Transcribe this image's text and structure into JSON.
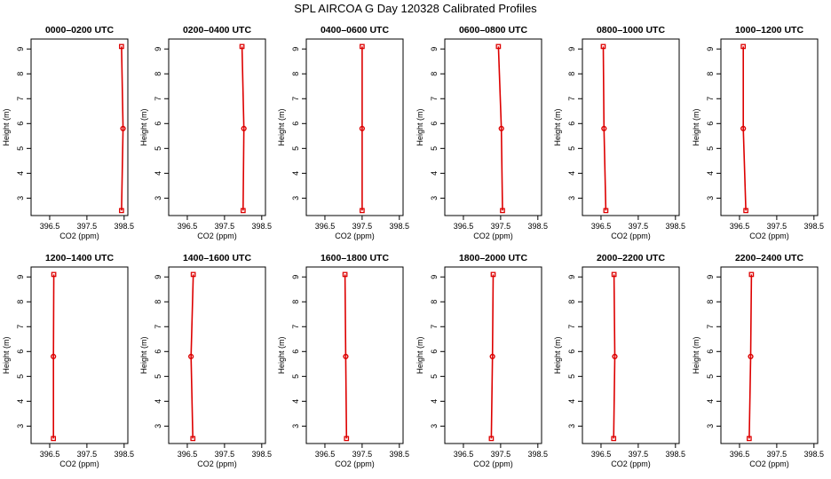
{
  "figure": {
    "title": "SPL AIRCOA G  Day 120328  Calibrated Profiles"
  },
  "colors": {
    "profile": "#dd0000",
    "axis": "#000000",
    "background": "#ffffff"
  },
  "chart_data": [
    {
      "type": "line",
      "title": "0000–0200 UTC",
      "xlabel": "CO2 (ppm)",
      "ylabel": "Height (m)",
      "xlim": [
        396.0,
        398.6
      ],
      "ylim": [
        2.3,
        9.4
      ],
      "xticks": [
        "396.5",
        "397.5",
        "398.5"
      ],
      "xtick_values": [
        396.5,
        397.5,
        398.5
      ],
      "yticks": [
        "3",
        "4",
        "5",
        "6",
        "7",
        "8",
        "9"
      ],
      "ytick_values": [
        3,
        4,
        5,
        6,
        7,
        8,
        9
      ],
      "heights": [
        2.5,
        5.8,
        9.1
      ],
      "co2": [
        398.43,
        398.47,
        398.43
      ]
    },
    {
      "type": "line",
      "title": "0200–0400 UTC",
      "xlabel": "CO2 (ppm)",
      "ylabel": "Height (m)",
      "xlim": [
        396.0,
        398.6
      ],
      "ylim": [
        2.3,
        9.4
      ],
      "xticks": [
        "396.5",
        "397.5",
        "398.5"
      ],
      "xtick_values": [
        396.5,
        397.5,
        398.5
      ],
      "yticks": [
        "3",
        "4",
        "5",
        "6",
        "7",
        "8",
        "9"
      ],
      "ytick_values": [
        3,
        4,
        5,
        6,
        7,
        8,
        9
      ],
      "heights": [
        2.5,
        5.8,
        9.1
      ],
      "co2": [
        398.0,
        398.02,
        397.97
      ]
    },
    {
      "type": "line",
      "title": "0400–0600 UTC",
      "xlabel": "CO2 (ppm)",
      "ylabel": "Height (m)",
      "xlim": [
        396.0,
        398.6
      ],
      "ylim": [
        2.3,
        9.4
      ],
      "xticks": [
        "396.5",
        "397.5",
        "398.5"
      ],
      "xtick_values": [
        396.5,
        397.5,
        398.5
      ],
      "yticks": [
        "3",
        "4",
        "5",
        "6",
        "7",
        "8",
        "9"
      ],
      "ytick_values": [
        3,
        4,
        5,
        6,
        7,
        8,
        9
      ],
      "heights": [
        2.5,
        5.8,
        9.1
      ],
      "co2": [
        397.5,
        397.5,
        397.5
      ]
    },
    {
      "type": "line",
      "title": "0600–0800 UTC",
      "xlabel": "CO2 (ppm)",
      "ylabel": "Height (m)",
      "xlim": [
        396.0,
        398.6
      ],
      "ylim": [
        2.3,
        9.4
      ],
      "xticks": [
        "396.5",
        "397.5",
        "398.5"
      ],
      "xtick_values": [
        396.5,
        397.5,
        398.5
      ],
      "yticks": [
        "3",
        "4",
        "5",
        "6",
        "7",
        "8",
        "9"
      ],
      "ytick_values": [
        3,
        4,
        5,
        6,
        7,
        8,
        9
      ],
      "heights": [
        2.5,
        5.8,
        9.1
      ],
      "co2": [
        397.55,
        397.52,
        397.44
      ]
    },
    {
      "type": "line",
      "title": "0800–1000 UTC",
      "xlabel": "CO2 (ppm)",
      "ylabel": "Height (m)",
      "xlim": [
        396.0,
        398.6
      ],
      "ylim": [
        2.3,
        9.4
      ],
      "xticks": [
        "396.5",
        "397.5",
        "398.5"
      ],
      "xtick_values": [
        396.5,
        397.5,
        398.5
      ],
      "yticks": [
        "3",
        "4",
        "5",
        "6",
        "7",
        "8",
        "9"
      ],
      "ytick_values": [
        3,
        4,
        5,
        6,
        7,
        8,
        9
      ],
      "heights": [
        2.5,
        5.8,
        9.1
      ],
      "co2": [
        396.63,
        396.58,
        396.56
      ]
    },
    {
      "type": "line",
      "title": "1000–1200 UTC",
      "xlabel": "CO2 (ppm)",
      "ylabel": "Height (m)",
      "xlim": [
        396.0,
        398.6
      ],
      "ylim": [
        2.3,
        9.4
      ],
      "xticks": [
        "396.5",
        "397.5",
        "398.5"
      ],
      "xtick_values": [
        396.5,
        397.5,
        398.5
      ],
      "yticks": [
        "3",
        "4",
        "5",
        "6",
        "7",
        "8",
        "9"
      ],
      "ytick_values": [
        3,
        4,
        5,
        6,
        7,
        8,
        9
      ],
      "heights": [
        2.5,
        5.8,
        9.1
      ],
      "co2": [
        396.67,
        396.6,
        396.6
      ]
    },
    {
      "type": "line",
      "title": "1200–1400 UTC",
      "xlabel": "CO2 (ppm)",
      "ylabel": "Height (m)",
      "xlim": [
        396.0,
        398.6
      ],
      "ylim": [
        2.3,
        9.4
      ],
      "xticks": [
        "396.5",
        "397.5",
        "398.5"
      ],
      "xtick_values": [
        396.5,
        397.5,
        398.5
      ],
      "yticks": [
        "3",
        "4",
        "5",
        "6",
        "7",
        "8",
        "9"
      ],
      "ytick_values": [
        3,
        4,
        5,
        6,
        7,
        8,
        9
      ],
      "heights": [
        2.5,
        5.8,
        9.1
      ],
      "co2": [
        396.6,
        396.6,
        396.61
      ]
    },
    {
      "type": "line",
      "title": "1400–1600 UTC",
      "xlabel": "CO2 (ppm)",
      "ylabel": "Height (m)",
      "xlim": [
        396.0,
        398.6
      ],
      "ylim": [
        2.3,
        9.4
      ],
      "xticks": [
        "396.5",
        "397.5",
        "398.5"
      ],
      "xtick_values": [
        396.5,
        397.5,
        398.5
      ],
      "yticks": [
        "3",
        "4",
        "5",
        "6",
        "7",
        "8",
        "9"
      ],
      "ytick_values": [
        3,
        4,
        5,
        6,
        7,
        8,
        9
      ],
      "heights": [
        2.5,
        5.8,
        9.1
      ],
      "co2": [
        396.65,
        396.6,
        396.66
      ]
    },
    {
      "type": "line",
      "title": "1600–1800 UTC",
      "xlabel": "CO2 (ppm)",
      "ylabel": "Height (m)",
      "xlim": [
        396.0,
        398.6
      ],
      "ylim": [
        2.3,
        9.4
      ],
      "xticks": [
        "396.5",
        "397.5",
        "398.5"
      ],
      "xtick_values": [
        396.5,
        397.5,
        398.5
      ],
      "yticks": [
        "3",
        "4",
        "5",
        "6",
        "7",
        "8",
        "9"
      ],
      "ytick_values": [
        3,
        4,
        5,
        6,
        7,
        8,
        9
      ],
      "heights": [
        2.5,
        5.8,
        9.1
      ],
      "co2": [
        397.08,
        397.06,
        397.04
      ]
    },
    {
      "type": "line",
      "title": "1800–2000 UTC",
      "xlabel": "CO2 (ppm)",
      "ylabel": "Height (m)",
      "xlim": [
        396.0,
        398.6
      ],
      "ylim": [
        2.3,
        9.4
      ],
      "xticks": [
        "396.5",
        "397.5",
        "398.5"
      ],
      "xtick_values": [
        396.5,
        397.5,
        398.5
      ],
      "yticks": [
        "3",
        "4",
        "5",
        "6",
        "7",
        "8",
        "9"
      ],
      "ytick_values": [
        3,
        4,
        5,
        6,
        7,
        8,
        9
      ],
      "heights": [
        2.5,
        5.8,
        9.1
      ],
      "co2": [
        397.25,
        397.28,
        397.3
      ]
    },
    {
      "type": "line",
      "title": "2000–2200 UTC",
      "xlabel": "CO2 (ppm)",
      "ylabel": "Height (m)",
      "xlim": [
        396.0,
        398.6
      ],
      "ylim": [
        2.3,
        9.4
      ],
      "xticks": [
        "396.5",
        "397.5",
        "398.5"
      ],
      "xtick_values": [
        396.5,
        397.5,
        398.5
      ],
      "yticks": [
        "3",
        "4",
        "5",
        "6",
        "7",
        "8",
        "9"
      ],
      "ytick_values": [
        3,
        4,
        5,
        6,
        7,
        8,
        9
      ],
      "heights": [
        2.5,
        5.8,
        9.1
      ],
      "co2": [
        396.84,
        396.87,
        396.85
      ]
    },
    {
      "type": "line",
      "title": "2200–2400 UTC",
      "xlabel": "CO2 (ppm)",
      "ylabel": "Height (m)",
      "xlim": [
        396.0,
        398.6
      ],
      "ylim": [
        2.3,
        9.4
      ],
      "xticks": [
        "396.5",
        "397.5",
        "398.5"
      ],
      "xtick_values": [
        396.5,
        397.5,
        398.5
      ],
      "yticks": [
        "3",
        "4",
        "5",
        "6",
        "7",
        "8",
        "9"
      ],
      "ytick_values": [
        3,
        4,
        5,
        6,
        7,
        8,
        9
      ],
      "heights": [
        2.5,
        5.8,
        9.1
      ],
      "co2": [
        396.76,
        396.8,
        396.82
      ]
    }
  ]
}
